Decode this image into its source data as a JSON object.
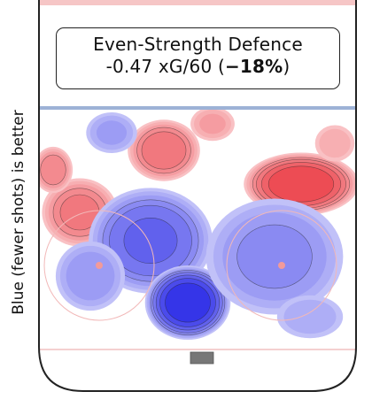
{
  "chart_data": {
    "type": "heatmap",
    "title_line1": "Even-Strength Defence",
    "title_metric": "-0.47 xG/60",
    "title_pct": "−18%",
    "ylabel": "Blue (fewer shots) is better",
    "colors": {
      "worse": "#e8202a",
      "better": "#1f1fe6",
      "blue_line": "#9db2d6",
      "goal_line": "#f0c0c0",
      "net": "#777777"
    },
    "blobs": [
      {
        "sign": 1,
        "peak": 0.55
      },
      {
        "sign": 1,
        "peak": 0.6
      },
      {
        "sign": 1,
        "peak": 0.85
      },
      {
        "sign": 1,
        "peak": 0.5
      },
      {
        "sign": 1,
        "peak": 0.35
      },
      {
        "sign": 1,
        "peak": 0.3
      },
      {
        "sign": -1,
        "peak": 0.35
      },
      {
        "sign": -1,
        "peak": 0.65
      },
      {
        "sign": -1,
        "peak": 0.95
      },
      {
        "sign": -1,
        "peak": 0.45
      },
      {
        "sign": -1,
        "peak": 0.4
      },
      {
        "sign": -1,
        "peak": 0.3
      }
    ]
  }
}
